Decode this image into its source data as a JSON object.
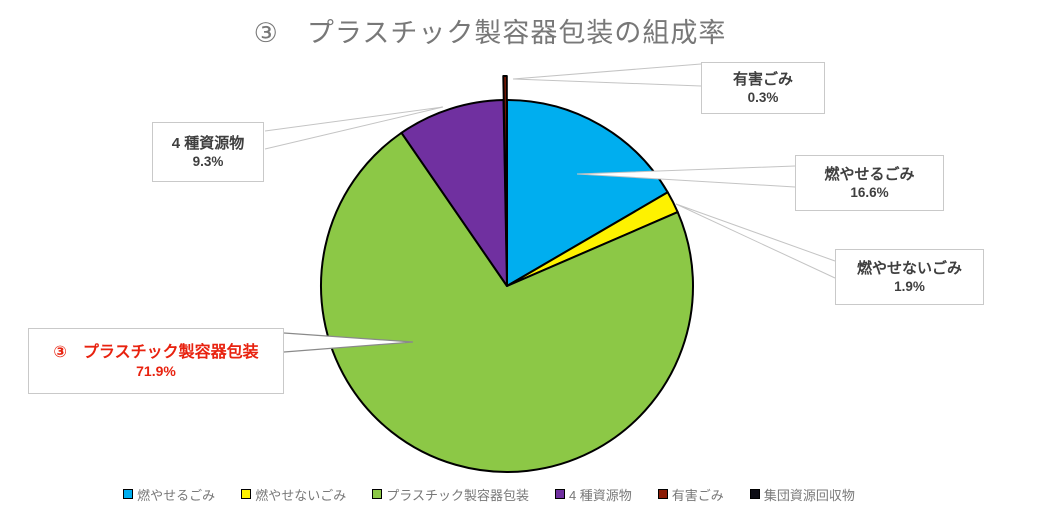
{
  "title": "③　プラスチック製容器包装の組成率",
  "chart_data": {
    "type": "pie",
    "title": "③　プラスチック製容器包装の組成率",
    "title_color": "#787878",
    "categories": [
      "燃やせるごみ",
      "燃やせないごみ",
      "プラスチック製容器包装",
      "4 種資源物",
      "有害ごみ",
      "集団資源回収物"
    ],
    "keys": [
      "burnable",
      "non-burnable",
      "plastic-packaging",
      "four-type-recyclables",
      "hazardous",
      "group-collection"
    ],
    "values": [
      16.6,
      1.9,
      71.9,
      9.3,
      0.3,
      0.0
    ],
    "unit": "%",
    "colors": [
      "#00AEEF",
      "#FEF200",
      "#8CC846",
      "#7030A0",
      "#8B1C06",
      "#0D0D15"
    ],
    "exploded": [
      false,
      false,
      false,
      false,
      true,
      false
    ],
    "start_angle_deg": 0,
    "direction": "clockwise",
    "slice_outline_color": "#000000",
    "legend_position": "bottom"
  },
  "callouts": [
    {
      "label": "有害ごみ",
      "value": "0.3%"
    },
    {
      "label": "燃やせるごみ",
      "value": "16.6%"
    },
    {
      "label": "燃やせないごみ",
      "value": "1.9%"
    },
    {
      "label": "4 種資源物",
      "value": "9.3%"
    },
    {
      "label": "③　プラスチック製容器包装",
      "value": "71.9%",
      "color": "#E8220F"
    }
  ]
}
